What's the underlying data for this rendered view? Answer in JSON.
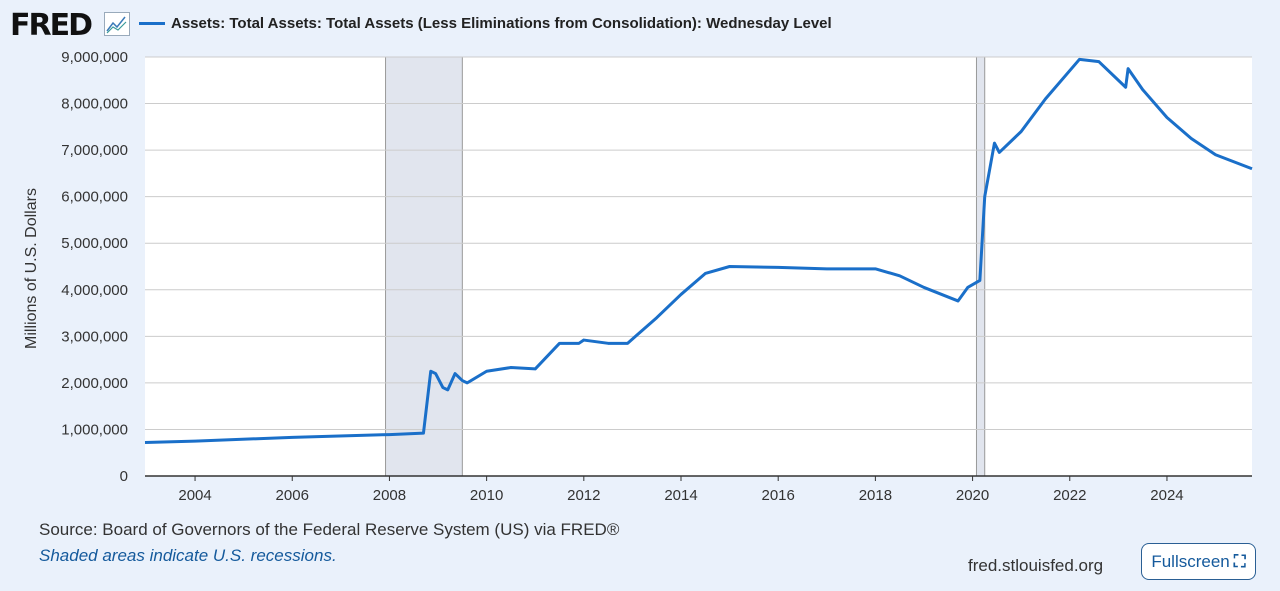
{
  "brand": "FRED",
  "footer": {
    "source": "Source: Board of Governors of the Federal Reserve System (US) via FRED®",
    "note": "Shaded areas indicate U.S. recessions.",
    "site": "fred.stlouisfed.org",
    "fullscreen": "Fullscreen"
  },
  "colors": {
    "line": "#1a6fc9",
    "recession": "#e1e5ee",
    "background": "#eaf1fb"
  },
  "chart_data": {
    "type": "line",
    "title": "",
    "ylabel": "Millions of U.S. Dollars",
    "xlabel": "",
    "xlim": [
      2002.97,
      2025.75
    ],
    "ylim": [
      0,
      9000000
    ],
    "grid": true,
    "legend_placement": "top",
    "xticks": [
      "2004",
      "2006",
      "2008",
      "2010",
      "2012",
      "2014",
      "2016",
      "2018",
      "2020",
      "2022",
      "2024"
    ],
    "yticks": [
      "0",
      "1,000,000",
      "2,000,000",
      "3,000,000",
      "4,000,000",
      "5,000,000",
      "6,000,000",
      "7,000,000",
      "8,000,000",
      "9,000,000"
    ],
    "recessions": [
      [
        2007.92,
        2009.5
      ],
      [
        2020.08,
        2020.25
      ]
    ],
    "series": [
      {
        "name": "Assets: Total Assets: Total Assets (Less Eliminations from Consolidation): Wednesday Level",
        "x": [
          2002.97,
          2004,
          2006,
          2008,
          2008.7,
          2008.85,
          2008.95,
          2009.1,
          2009.2,
          2009.35,
          2009.5,
          2009.6,
          2010,
          2010.5,
          2011,
          2011.5,
          2011.9,
          2012,
          2012.5,
          2012.9,
          2013.5,
          2014,
          2014.5,
          2015,
          2016,
          2017,
          2018,
          2018.5,
          2019,
          2019.7,
          2019.9,
          2020.15,
          2020.25,
          2020.45,
          2020.55,
          2021,
          2021.5,
          2022.2,
          2022.6,
          2023.15,
          2023.2,
          2023.5,
          2024,
          2024.5,
          2025,
          2025.75
        ],
        "y": [
          720000,
          750000,
          830000,
          890000,
          920000,
          2250000,
          2200000,
          1900000,
          1850000,
          2200000,
          2050000,
          2000000,
          2250000,
          2330000,
          2300000,
          2850000,
          2850000,
          2920000,
          2850000,
          2850000,
          3400000,
          3900000,
          4350000,
          4500000,
          4480000,
          4450000,
          4450000,
          4300000,
          4050000,
          3760000,
          4050000,
          4200000,
          6000000,
          7150000,
          6950000,
          7400000,
          8100000,
          8950000,
          8900000,
          8350000,
          8750000,
          8300000,
          7700000,
          7250000,
          6900000,
          6600000
        ]
      }
    ]
  }
}
